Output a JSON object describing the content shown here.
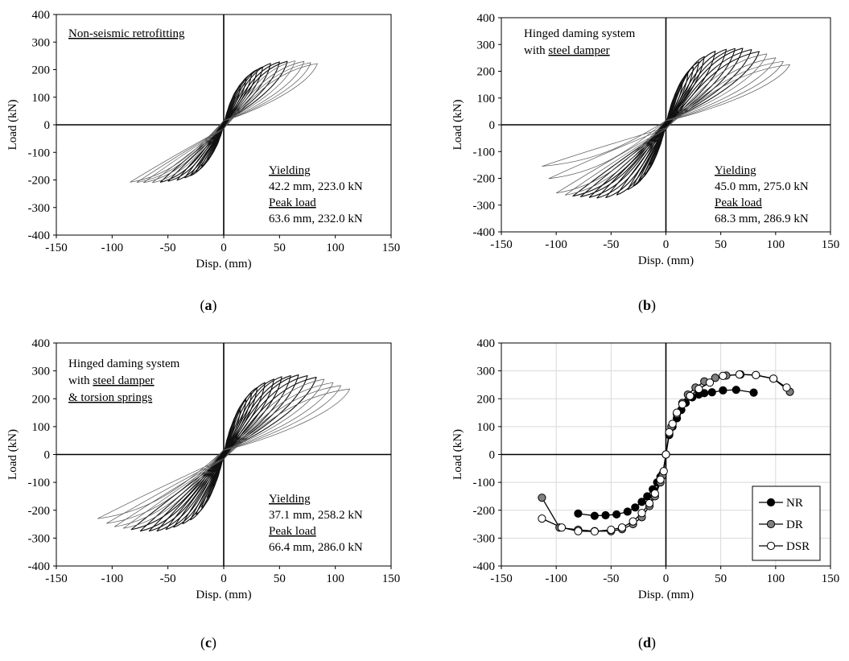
{
  "axes": {
    "xlabel": "Disp. (mm)",
    "ylabel": "Load (kN)",
    "xlim": [
      -150,
      150
    ],
    "ylim": [
      -400,
      400
    ],
    "xticks": [
      "-150",
      "-100",
      "-50",
      "0",
      "50",
      "100",
      "150"
    ],
    "yticks": [
      "-400",
      "-300",
      "-200",
      "-100",
      "0",
      "100",
      "200",
      "300",
      "400"
    ]
  },
  "chart_data": [
    {
      "type": "line",
      "panel": "(a)",
      "caption_letter": "a",
      "title_lines": [
        "Non-seismic retrofitting"
      ],
      "xlabel": "Disp. (mm)",
      "ylabel": "Load (kN)",
      "xlim": [
        -150,
        150
      ],
      "ylim": [
        -400,
        400
      ],
      "description_hysteresis": true,
      "envelope": {
        "pos": [
          [
            0,
            0
          ],
          [
            5,
            60
          ],
          [
            10,
            105
          ],
          [
            15,
            140
          ],
          [
            20,
            165
          ],
          [
            25,
            185
          ],
          [
            30,
            200
          ],
          [
            35,
            210
          ],
          [
            42.2,
            223.0
          ],
          [
            50,
            228
          ],
          [
            63.6,
            232.0
          ],
          [
            72,
            230
          ],
          [
            82,
            222
          ]
        ],
        "neg": [
          [
            0,
            0
          ],
          [
            -5,
            -55
          ],
          [
            -10,
            -95
          ],
          [
            -15,
            -125
          ],
          [
            -20,
            -150
          ],
          [
            -25,
            -170
          ],
          [
            -30,
            -185
          ],
          [
            -40,
            -200
          ],
          [
            -50,
            -205
          ],
          [
            -60,
            -210
          ],
          [
            -72,
            -210
          ],
          [
            -85,
            -208
          ]
        ]
      },
      "cycle_peaks_pos": [
        5,
        10,
        15,
        20,
        25,
        30,
        35,
        42,
        50,
        57,
        64,
        72,
        78,
        84
      ],
      "cycle_peaks_neg": [
        5,
        10,
        15,
        20,
        25,
        30,
        35,
        42,
        50,
        57,
        64,
        72,
        78,
        84
      ],
      "annotations": {
        "yield_label": "Yielding",
        "yield_value": "42.2 mm, 223.0 kN",
        "peak_label": "Peak load",
        "peak_value": "63.6 mm, 232.0 kN"
      },
      "yield": [
        42.2,
        223.0
      ],
      "peak": [
        63.6,
        232.0
      ]
    },
    {
      "type": "line",
      "panel": "(b)",
      "caption_letter": "b",
      "title_lines": [
        "Hinged daming system",
        "with ",
        "steel damper"
      ],
      "xlabel": "Disp. (mm)",
      "ylabel": "Load (kN)",
      "xlim": [
        -150,
        150
      ],
      "ylim": [
        -400,
        400
      ],
      "envelope": {
        "pos": [
          [
            0,
            0
          ],
          [
            5,
            65
          ],
          [
            10,
            115
          ],
          [
            15,
            155
          ],
          [
            20,
            190
          ],
          [
            25,
            215
          ],
          [
            30,
            235
          ],
          [
            35,
            255
          ],
          [
            45.0,
            275.0
          ],
          [
            55,
            282
          ],
          [
            68.3,
            286.9
          ],
          [
            80,
            280
          ],
          [
            92,
            265
          ],
          [
            103,
            245
          ],
          [
            113,
            225
          ]
        ],
        "neg": [
          [
            0,
            0
          ],
          [
            -5,
            -60
          ],
          [
            -10,
            -110
          ],
          [
            -15,
            -150
          ],
          [
            -20,
            -185
          ],
          [
            -25,
            -210
          ],
          [
            -30,
            -230
          ],
          [
            -40,
            -255
          ],
          [
            -50,
            -270
          ],
          [
            -60,
            -275
          ],
          [
            -75,
            -270
          ],
          [
            -90,
            -265
          ],
          [
            -100,
            -255
          ],
          [
            -113,
            -155
          ]
        ]
      },
      "cycle_peaks_pos": [
        5,
        10,
        15,
        20,
        25,
        30,
        35,
        45,
        55,
        63,
        70,
        78,
        85,
        92,
        100,
        107,
        113
      ],
      "cycle_peaks_neg": [
        5,
        10,
        15,
        20,
        25,
        30,
        35,
        45,
        55,
        63,
        70,
        78,
        85,
        92,
        100,
        107,
        113
      ],
      "annotations": {
        "yield_label": "Yielding",
        "yield_value": "45.0 mm, 275.0 kN",
        "peak_label": "Peak load",
        "peak_value": "68.3 mm, 286.9 kN"
      },
      "yield": [
        45.0,
        275.0
      ],
      "peak": [
        68.3,
        286.9
      ]
    },
    {
      "type": "line",
      "panel": "(c)",
      "caption_letter": "c",
      "title_lines": [
        "Hinged daming system",
        "with ",
        "steel damper",
        "& torsion springs"
      ],
      "xlabel": "Disp. (mm)",
      "ylabel": "Load (kN)",
      "xlim": [
        -150,
        150
      ],
      "ylim": [
        -400,
        400
      ],
      "envelope": {
        "pos": [
          [
            0,
            0
          ],
          [
            5,
            70
          ],
          [
            10,
            120
          ],
          [
            15,
            160
          ],
          [
            20,
            195
          ],
          [
            25,
            220
          ],
          [
            30,
            240
          ],
          [
            37.1,
            258.2
          ],
          [
            50,
            278
          ],
          [
            66.4,
            286.0
          ],
          [
            78,
            282
          ],
          [
            90,
            270
          ],
          [
            100,
            255
          ],
          [
            113,
            235
          ]
        ],
        "neg": [
          [
            0,
            0
          ],
          [
            -5,
            -65
          ],
          [
            -10,
            -115
          ],
          [
            -15,
            -155
          ],
          [
            -20,
            -190
          ],
          [
            -25,
            -215
          ],
          [
            -30,
            -235
          ],
          [
            -40,
            -255
          ],
          [
            -50,
            -268
          ],
          [
            -60,
            -275
          ],
          [
            -75,
            -275
          ],
          [
            -90,
            -265
          ],
          [
            -100,
            -258
          ],
          [
            -113,
            -230
          ]
        ]
      },
      "cycle_peaks_pos": [
        5,
        10,
        15,
        20,
        25,
        30,
        37,
        45,
        52,
        60,
        67,
        75,
        83,
        90,
        98,
        105,
        113
      ],
      "cycle_peaks_neg": [
        5,
        10,
        15,
        20,
        25,
        30,
        37,
        45,
        52,
        60,
        67,
        75,
        83,
        90,
        98,
        105,
        113
      ],
      "annotations": {
        "yield_label": "Yielding",
        "yield_value": "37.1 mm, 258.2 kN",
        "peak_label": "Peak load",
        "peak_value": "66.4 mm, 286.0 kN"
      },
      "yield": [
        37.1,
        258.2
      ],
      "peak": [
        66.4,
        286.0
      ]
    },
    {
      "type": "line",
      "panel": "(d)",
      "caption_letter": "d",
      "xlabel": "Disp. (mm)",
      "ylabel": "Load (kN)",
      "xlim": [
        -150,
        150
      ],
      "ylim": [
        -400,
        400
      ],
      "grid": true,
      "legend": "lower-right",
      "series": [
        {
          "name": "NR",
          "marker_color": "#000000",
          "points": [
            [
              -80,
              -212
            ],
            [
              -65,
              -220
            ],
            [
              -55,
              -218
            ],
            [
              -45,
              -215
            ],
            [
              -35,
              -205
            ],
            [
              -28,
              -190
            ],
            [
              -22,
              -170
            ],
            [
              -17,
              -150
            ],
            [
              -12,
              -125
            ],
            [
              -8,
              -100
            ],
            [
              -5,
              -80
            ],
            [
              -3,
              -70
            ],
            [
              0,
              0
            ],
            [
              3,
              70
            ],
            [
              6,
              100
            ],
            [
              10,
              130
            ],
            [
              14,
              160
            ],
            [
              18,
              185
            ],
            [
              24,
              205
            ],
            [
              30,
              215
            ],
            [
              35,
              220
            ],
            [
              42,
              223
            ],
            [
              52,
              230
            ],
            [
              64,
              232
            ],
            [
              80,
              222
            ]
          ]
        },
        {
          "name": "DR",
          "marker_color": "#808080",
          "points": [
            [
              -113,
              -155
            ],
            [
              -97,
              -262
            ],
            [
              -80,
              -270
            ],
            [
              -65,
              -275
            ],
            [
              -50,
              -275
            ],
            [
              -40,
              -268
            ],
            [
              -30,
              -250
            ],
            [
              -22,
              -225
            ],
            [
              -15,
              -185
            ],
            [
              -10,
              -150
            ],
            [
              -5,
              -100
            ],
            [
              -3,
              -75
            ],
            [
              0,
              0
            ],
            [
              3,
              75
            ],
            [
              5,
              100
            ],
            [
              10,
              145
            ],
            [
              15,
              185
            ],
            [
              20,
              215
            ],
            [
              27,
              240
            ],
            [
              35,
              262
            ],
            [
              45,
              275
            ],
            [
              55,
              283
            ],
            [
              68,
              287
            ],
            [
              82,
              285
            ],
            [
              98,
              272
            ],
            [
              113,
              225
            ]
          ]
        },
        {
          "name": "DSR",
          "marker_color": "#ffffff",
          "points": [
            [
              -113,
              -230
            ],
            [
              -95,
              -262
            ],
            [
              -80,
              -275
            ],
            [
              -65,
              -276
            ],
            [
              -50,
              -270
            ],
            [
              -40,
              -262
            ],
            [
              -30,
              -240
            ],
            [
              -22,
              -210
            ],
            [
              -15,
              -175
            ],
            [
              -10,
              -140
            ],
            [
              -5,
              -90
            ],
            [
              -2,
              -60
            ],
            [
              0,
              0
            ],
            [
              3,
              80
            ],
            [
              6,
              110
            ],
            [
              10,
              150
            ],
            [
              15,
              180
            ],
            [
              22,
              210
            ],
            [
              30,
              235
            ],
            [
              40,
              258
            ],
            [
              52,
              282
            ],
            [
              67,
              287
            ],
            [
              82,
              285
            ],
            [
              98,
              272
            ],
            [
              110,
              240
            ]
          ]
        }
      ]
    }
  ]
}
